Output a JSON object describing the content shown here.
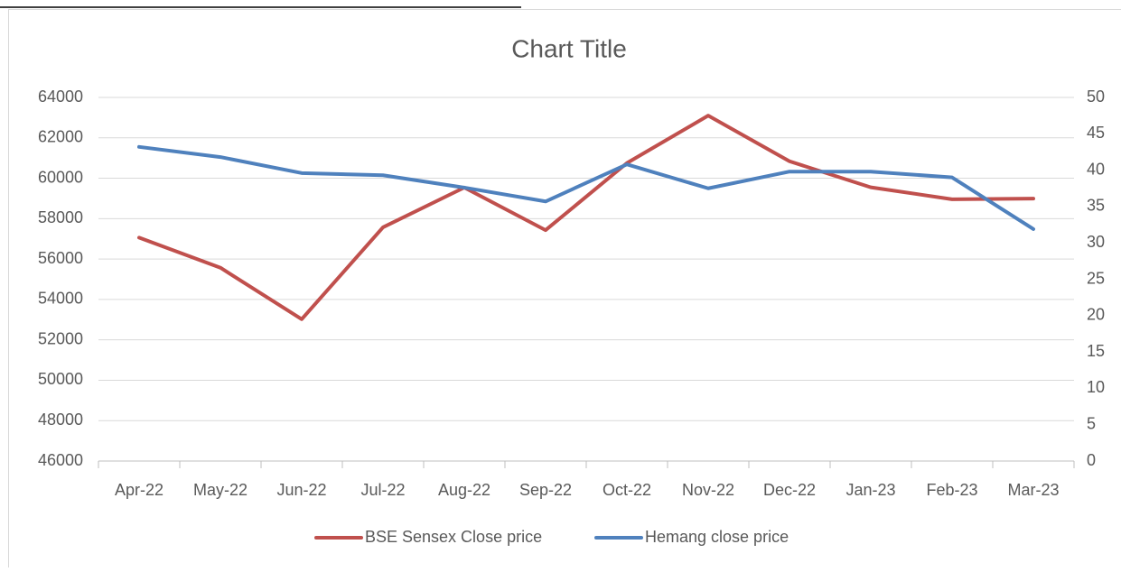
{
  "chart_data": {
    "type": "line",
    "title": "Chart Title",
    "categories": [
      "Apr-22",
      "May-22",
      "Jun-22",
      "Jul-22",
      "Aug-22",
      "Sep-22",
      "Oct-22",
      "Nov-22",
      "Dec-22",
      "Jan-23",
      "Feb-23",
      "Mar-23"
    ],
    "series": [
      {
        "name": "BSE Sensex Close price",
        "color": "#c0504d",
        "values": [
          57060,
          55570,
          53020,
          57570,
          59540,
          57430,
          60750,
          63100,
          60840,
          59550,
          58960,
          58990
        ]
      },
      {
        "name": "Hemang close price",
        "color": "#4f81bd",
        "axis": "y2",
        "values": [
          43.2,
          41.8,
          39.6,
          39.3,
          37.6,
          35.7,
          40.8,
          37.5,
          39.8,
          39.8,
          39,
          31.9
        ]
      }
    ],
    "ylim": [
      46000,
      64000
    ],
    "yticks": [
      46000,
      48000,
      50000,
      52000,
      54000,
      56000,
      58000,
      60000,
      62000,
      64000
    ],
    "y2lim": [
      0,
      50
    ],
    "y2ticks": [
      0,
      5,
      10,
      15,
      20,
      25,
      30,
      35,
      40,
      45,
      50
    ],
    "grid": true,
    "legend": "bottom"
  }
}
